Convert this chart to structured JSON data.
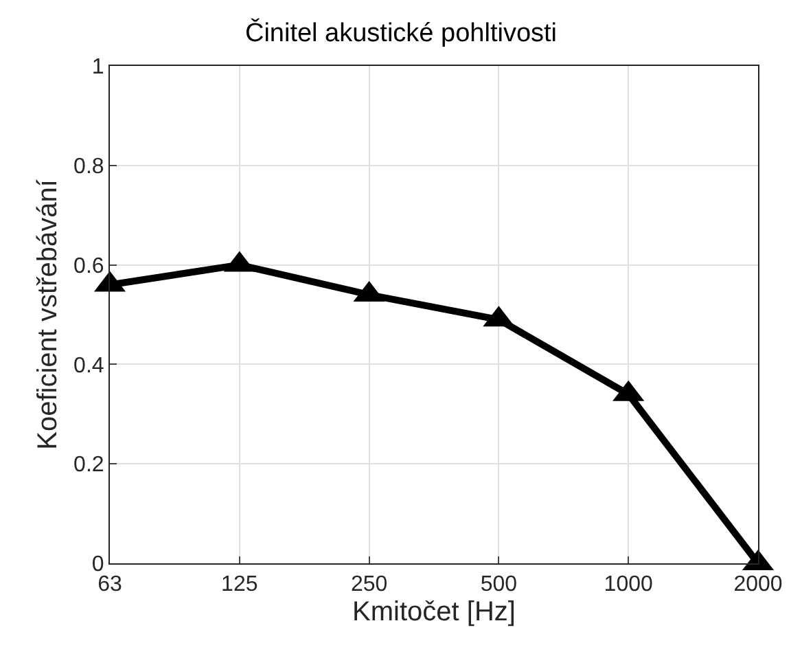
{
  "chart_data": {
    "type": "line",
    "title": "Činitel akustické pohltivosti",
    "xlabel": "Kmitočet [Hz]",
    "ylabel": "Koeficient vstřebávání",
    "categories": [
      "63",
      "125",
      "250",
      "500",
      "1000",
      "2000"
    ],
    "series": [
      {
        "color": "#000000",
        "values": [
          0.56,
          0.6,
          0.54,
          0.49,
          0.34,
          0.0
        ]
      }
    ],
    "ylim": [
      0,
      1
    ],
    "yticks": [
      0,
      0.2,
      0.4,
      0.6,
      0.8,
      1
    ],
    "grid": true,
    "marker": "triangle",
    "line_style": "solid",
    "legend": false
  }
}
